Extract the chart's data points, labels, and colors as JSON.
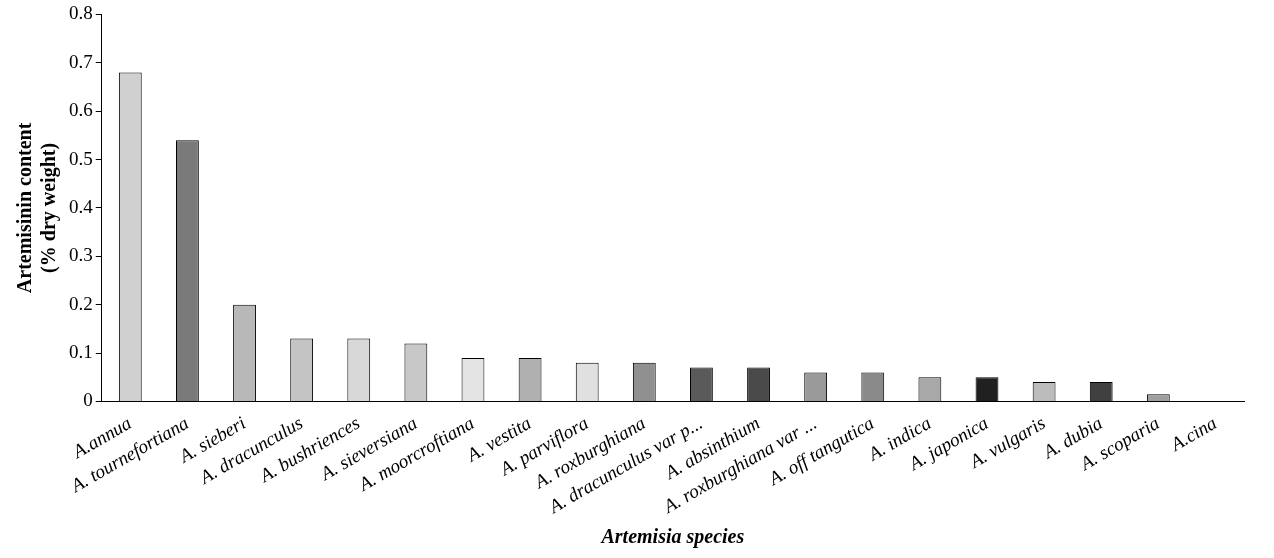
{
  "chart_data": {
    "type": "bar",
    "xlabel": "Artemisia species",
    "ylabel": "Artemisinin content\n(% dry weight)",
    "categories": [
      "A.annua",
      "A. tournefortiana",
      "A. sieberi",
      "A. dracunculus",
      "A. bushriences",
      "A. sieversiana",
      "A. moorcroftiana",
      "A. vestita",
      "A. parviflora",
      "A. roxburghiana",
      "A. dracunculus var p...",
      "A. absinthium",
      "A. roxburghiana var ...",
      "A. off tangutica",
      "A. indica",
      "A. japonica",
      "A. vulgaris",
      "A. dubia",
      "A. scoparia",
      "A.cina"
    ],
    "values": [
      0.68,
      0.54,
      0.2,
      0.13,
      0.13,
      0.12,
      0.09,
      0.09,
      0.08,
      0.08,
      0.07,
      0.07,
      0.06,
      0.06,
      0.05,
      0.05,
      0.04,
      0.04,
      0.015,
      0
    ],
    "colors": [
      "#d0d0d0",
      "#7a7a7a",
      "#b8b8b8",
      "#c4c4c4",
      "#d8d8d8",
      "#c8c8c8",
      "#e4e4e4",
      "#b0b0b0",
      "#e0e0e0",
      "#909090",
      "#5a5a5a",
      "#4a4a4a",
      "#9a9a9a",
      "#8a8a8a",
      "#a8a8a8",
      "#202020",
      "#bcbcbc",
      "#404040",
      "#a0a0a0",
      "#808080"
    ],
    "ylim": [
      0,
      0.8
    ],
    "yticks": [
      0,
      0.1,
      0.2,
      0.3,
      0.4,
      0.5,
      0.6,
      0.7,
      0.8
    ],
    "grid": false,
    "legend": false
  }
}
